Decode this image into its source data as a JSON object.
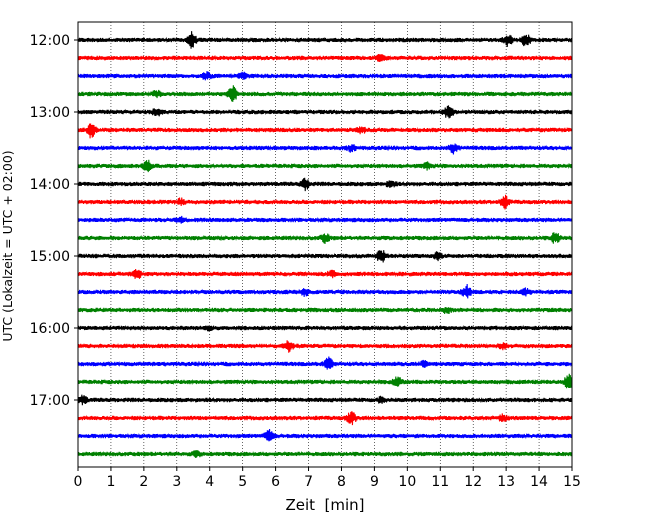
{
  "chart_data": {
    "type": "line",
    "title": "",
    "xlabel": "Zeit  [min]",
    "ylabel": "UTC (Lokalzeit = UTC + 02:00)",
    "xlim": [
      0,
      15
    ],
    "x_ticks": [
      "0",
      "1",
      "2",
      "3",
      "4",
      "5",
      "6",
      "7",
      "8",
      "9",
      "10",
      "11",
      "12",
      "13",
      "14",
      "15"
    ],
    "y_tick_labels": [
      "12:00",
      "13:00",
      "14:00",
      "15:00",
      "16:00",
      "17:00"
    ],
    "grid": "vertical-dotted",
    "trace_interval_minutes": 15,
    "trace_colors": [
      "#000000",
      "#ff0000",
      "#0000ff",
      "#008000"
    ],
    "traces": [
      {
        "start": "12:00",
        "color": "#000000",
        "events": [
          [
            3.45,
            1.0
          ],
          [
            13.05,
            0.9
          ],
          [
            13.6,
            0.8
          ]
        ]
      },
      {
        "start": "12:15",
        "color": "#ff0000",
        "events": [
          [
            9.2,
            0.4
          ]
        ]
      },
      {
        "start": "12:30",
        "color": "#0000ff",
        "events": [
          [
            3.9,
            0.45
          ],
          [
            5.0,
            0.35
          ]
        ]
      },
      {
        "start": "12:45",
        "color": "#008000",
        "events": [
          [
            2.4,
            0.45
          ],
          [
            4.7,
            1.0
          ]
        ]
      },
      {
        "start": "13:00",
        "color": "#000000",
        "events": [
          [
            2.4,
            0.5
          ],
          [
            11.25,
            1.0
          ]
        ]
      },
      {
        "start": "13:15",
        "color": "#ff0000",
        "events": [
          [
            0.4,
            1.0
          ],
          [
            8.6,
            0.4
          ]
        ]
      },
      {
        "start": "13:30",
        "color": "#0000ff",
        "events": [
          [
            8.3,
            0.4
          ],
          [
            11.4,
            0.65
          ]
        ]
      },
      {
        "start": "13:45",
        "color": "#008000",
        "events": [
          [
            2.1,
            0.7
          ],
          [
            10.6,
            0.35
          ]
        ]
      },
      {
        "start": "14:00",
        "color": "#000000",
        "events": [
          [
            6.9,
            0.7
          ],
          [
            9.5,
            0.4
          ]
        ]
      },
      {
        "start": "14:15",
        "color": "#ff0000",
        "events": [
          [
            3.1,
            0.4
          ],
          [
            12.95,
            0.8
          ]
        ]
      },
      {
        "start": "14:30",
        "color": "#0000ff",
        "events": [
          [
            3.1,
            0.35
          ]
        ]
      },
      {
        "start": "14:45",
        "color": "#008000",
        "events": [
          [
            7.5,
            0.55
          ],
          [
            14.5,
            0.7
          ]
        ]
      },
      {
        "start": "15:00",
        "color": "#000000",
        "events": [
          [
            9.2,
            0.9
          ],
          [
            10.9,
            0.45
          ]
        ]
      },
      {
        "start": "15:15",
        "color": "#ff0000",
        "events": [
          [
            1.8,
            0.55
          ],
          [
            7.7,
            0.35
          ]
        ]
      },
      {
        "start": "15:30",
        "color": "#0000ff",
        "events": [
          [
            6.9,
            0.45
          ],
          [
            11.8,
            0.85
          ],
          [
            13.6,
            0.4
          ]
        ]
      },
      {
        "start": "15:45",
        "color": "#008000",
        "events": [
          [
            11.2,
            0.35
          ]
        ]
      },
      {
        "start": "16:00",
        "color": "#000000",
        "events": [
          [
            4.0,
            0.3
          ]
        ]
      },
      {
        "start": "16:15",
        "color": "#ff0000",
        "events": [
          [
            6.4,
            0.65
          ],
          [
            12.9,
            0.35
          ]
        ]
      },
      {
        "start": "16:30",
        "color": "#0000ff",
        "events": [
          [
            7.6,
            0.8
          ],
          [
            10.5,
            0.3
          ]
        ]
      },
      {
        "start": "16:45",
        "color": "#008000",
        "events": [
          [
            9.7,
            0.7
          ],
          [
            14.9,
            1.0
          ]
        ]
      },
      {
        "start": "17:00",
        "color": "#000000",
        "events": [
          [
            0.15,
            0.55
          ],
          [
            9.2,
            0.3
          ]
        ]
      },
      {
        "start": "17:15",
        "color": "#ff0000",
        "events": [
          [
            8.3,
            0.9
          ],
          [
            12.9,
            0.35
          ]
        ]
      },
      {
        "start": "17:30",
        "color": "#0000ff",
        "events": [
          [
            5.8,
            0.75
          ]
        ]
      },
      {
        "start": "17:45",
        "color": "#008000",
        "events": [
          [
            3.6,
            0.3
          ]
        ]
      }
    ]
  }
}
